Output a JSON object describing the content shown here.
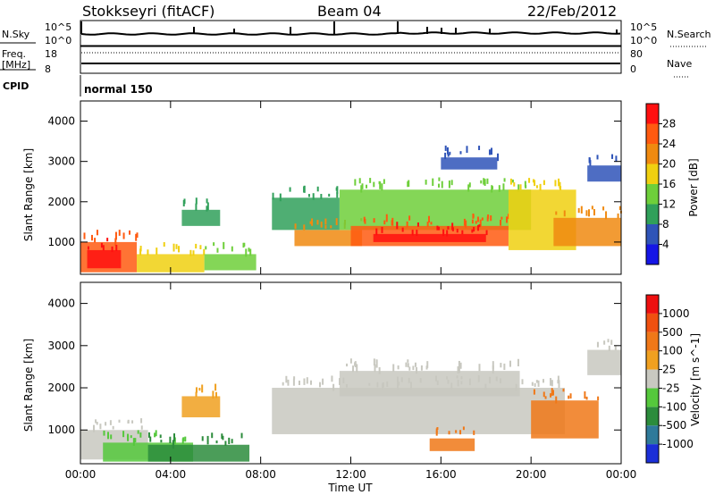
{
  "header": {
    "station": "Stokkseyri (fitACF)",
    "beam": "Beam 04",
    "date": "22/Feb/2012"
  },
  "panel_labels": {
    "nsky": "N.Sky",
    "freq_line1": "Freq.",
    "freq_line2": "[MHz]",
    "cpid": "CPID",
    "nsearch": "N.Search",
    "nave": "Nave",
    "cpid_value": "normal 150"
  },
  "small_ticks": {
    "nsky_top": "10^5",
    "nsky_bottom": "10^0",
    "nsearch_top": "10^5",
    "nsearch_bottom": "10^0",
    "freq_top": "18",
    "freq_bottom": "8",
    "nave_top": "80",
    "nave_bottom": "0"
  },
  "chart_data": [
    {
      "type": "heatmap",
      "ylabel": "Slant Range [km]",
      "yticks": [
        "1000",
        "2000",
        "3000",
        "4000"
      ],
      "xticks": [
        "00:00",
        "04:00",
        "08:00",
        "12:00",
        "16:00",
        "20:00",
        "00:00"
      ],
      "ylim": [
        200,
        4500
      ],
      "xlim": [
        0,
        24
      ],
      "colorbar": {
        "label": "Power [dB]",
        "ticks": [
          "4",
          "8",
          "12",
          "16",
          "20",
          "24",
          "28"
        ],
        "colors": [
          "#1515e6",
          "#2f54b8",
          "#30a05a",
          "#6ecf3a",
          "#f0d010",
          "#f08a10",
          "#ff5a10",
          "#ff1010"
        ]
      },
      "regions": [
        {
          "t0": 0.0,
          "t1": 2.5,
          "r0": 250,
          "r1": 1000,
          "level": 6
        },
        {
          "t0": 0.3,
          "t1": 1.8,
          "r0": 350,
          "r1": 800,
          "level": 8
        },
        {
          "t0": 2.5,
          "t1": 5.5,
          "r0": 250,
          "r1": 700,
          "level": 4
        },
        {
          "t0": 5.5,
          "t1": 7.8,
          "r0": 300,
          "r1": 700,
          "level": 3
        },
        {
          "t0": 4.5,
          "t1": 6.2,
          "r0": 1400,
          "r1": 1800,
          "level": 2
        },
        {
          "t0": 8.5,
          "t1": 11.5,
          "r0": 1300,
          "r1": 2100,
          "level": 2
        },
        {
          "t0": 9.5,
          "t1": 12.5,
          "r0": 900,
          "r1": 1300,
          "level": 5
        },
        {
          "t0": 11.5,
          "t1": 20.0,
          "r0": 1300,
          "r1": 2300,
          "level": 3
        },
        {
          "t0": 12.0,
          "t1": 19.0,
          "r0": 900,
          "r1": 1400,
          "level": 6
        },
        {
          "t0": 13.0,
          "t1": 18.0,
          "r0": 1000,
          "r1": 1200,
          "level": 8
        },
        {
          "t0": 19.0,
          "t1": 22.0,
          "r0": 800,
          "r1": 2300,
          "level": 4
        },
        {
          "t0": 21.0,
          "t1": 24.0,
          "r0": 900,
          "r1": 1600,
          "level": 5
        },
        {
          "t0": 16.0,
          "t1": 18.5,
          "r0": 2800,
          "r1": 3100,
          "level": 1
        },
        {
          "t0": 22.5,
          "t1": 24.0,
          "r0": 2500,
          "r1": 2900,
          "level": 1
        }
      ]
    },
    {
      "type": "heatmap",
      "ylabel": "Slant Range [km]",
      "yticks": [
        "1000",
        "2000",
        "3000",
        "4000"
      ],
      "xticks": [
        "00:00",
        "04:00",
        "08:00",
        "12:00",
        "16:00",
        "20:00",
        "00:00"
      ],
      "xlabel": "Time UT",
      "ylim": [
        200,
        4500
      ],
      "xlim": [
        0,
        24
      ],
      "colorbar": {
        "label": "Velocity [m s^-1]",
        "ticks": [
          "1000",
          "500",
          "100",
          "25",
          "-25",
          "-100",
          "-500",
          "-1000"
        ],
        "colors": [
          "#1b2fd8",
          "#2f7a9a",
          "#2c8c3c",
          "#55c83c",
          "#c8c8c0",
          "#f0a020",
          "#f07818",
          "#f05010",
          "#ee1010"
        ]
      },
      "regions": [
        {
          "t0": 0.0,
          "t1": 3.0,
          "r0": 300,
          "r1": 1000,
          "level": 4
        },
        {
          "t0": 1.0,
          "t1": 5.0,
          "r0": 250,
          "r1": 700,
          "level": 3
        },
        {
          "t0": 3.0,
          "t1": 7.5,
          "r0": 250,
          "r1": 650,
          "level": 2
        },
        {
          "t0": 4.5,
          "t1": 6.2,
          "r0": 1300,
          "r1": 1800,
          "level": 5
        },
        {
          "t0": 8.5,
          "t1": 21.5,
          "r0": 900,
          "r1": 2000,
          "level": 4
        },
        {
          "t0": 11.5,
          "t1": 19.5,
          "r0": 1800,
          "r1": 2400,
          "level": 4
        },
        {
          "t0": 20.0,
          "t1": 23.0,
          "r0": 800,
          "r1": 1700,
          "level": 6
        },
        {
          "t0": 22.5,
          "t1": 24.0,
          "r0": 2300,
          "r1": 2900,
          "level": 4
        },
        {
          "t0": 15.5,
          "t1": 17.5,
          "r0": 500,
          "r1": 800,
          "level": 6
        }
      ]
    }
  ]
}
